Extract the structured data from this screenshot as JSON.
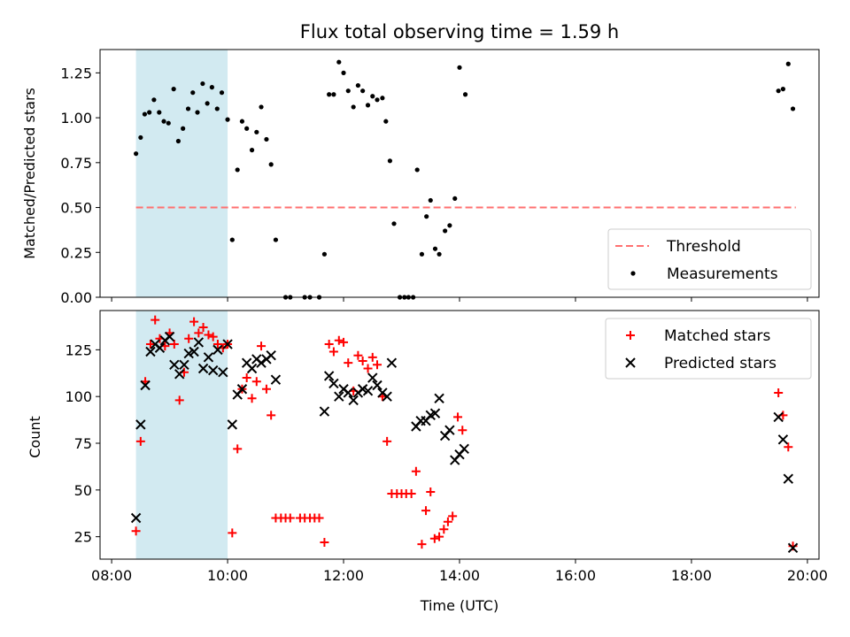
{
  "figure": {
    "title": "Flux total observing time = 1.59 h"
  },
  "colors": {
    "shade": "#add8e6",
    "threshold": "#ff7070",
    "matched": "#ff0000",
    "predicted": "#000000",
    "measurement": "#000000"
  },
  "chart_data": [
    {
      "type": "scatter",
      "title": "Flux total observing time = 1.59 h",
      "xlabel": "",
      "ylabel": "Matched/Predicted stars",
      "xlim": [
        7.8,
        20.2
      ],
      "ylim": [
        0.0,
        1.38
      ],
      "x_unit": "hours UTC",
      "x_ticks": [
        "08:00",
        "10:00",
        "12:00",
        "14:00",
        "16:00",
        "18:00",
        "20:00"
      ],
      "y_ticks": [
        "0.00",
        "0.25",
        "0.50",
        "0.75",
        "1.00",
        "1.25"
      ],
      "shaded_region": [
        8.42,
        10.0
      ],
      "grid": false,
      "legend_position": "lower right",
      "threshold": {
        "name": "Threshold",
        "y": 0.5,
        "x": [
          8.42,
          19.8
        ]
      },
      "series": [
        {
          "name": "Measurements",
          "marker": "dot",
          "points": [
            [
              8.42,
              0.8
            ],
            [
              8.5,
              0.89
            ],
            [
              8.57,
              1.02
            ],
            [
              8.65,
              1.03
            ],
            [
              8.73,
              1.1
            ],
            [
              8.82,
              1.03
            ],
            [
              8.9,
              0.98
            ],
            [
              8.98,
              0.97
            ],
            [
              9.07,
              1.16
            ],
            [
              9.15,
              0.87
            ],
            [
              9.23,
              0.94
            ],
            [
              9.32,
              1.05
            ],
            [
              9.4,
              1.14
            ],
            [
              9.48,
              1.03
            ],
            [
              9.57,
              1.19
            ],
            [
              9.65,
              1.08
            ],
            [
              9.73,
              1.17
            ],
            [
              9.82,
              1.05
            ],
            [
              9.9,
              1.14
            ],
            [
              10.0,
              0.99
            ],
            [
              10.08,
              0.32
            ],
            [
              10.17,
              0.71
            ],
            [
              10.25,
              0.98
            ],
            [
              10.33,
              0.94
            ],
            [
              10.42,
              0.82
            ],
            [
              10.5,
              0.92
            ],
            [
              10.58,
              1.06
            ],
            [
              10.67,
              0.88
            ],
            [
              10.75,
              0.74
            ],
            [
              10.83,
              0.32
            ],
            [
              11.0,
              0.0
            ],
            [
              11.08,
              0.0
            ],
            [
              11.33,
              0.0
            ],
            [
              11.42,
              0.0
            ],
            [
              11.58,
              0.0
            ],
            [
              11.67,
              0.24
            ],
            [
              11.75,
              1.13
            ],
            [
              11.83,
              1.13
            ],
            [
              11.92,
              1.31
            ],
            [
              12.0,
              1.25
            ],
            [
              12.08,
              1.15
            ],
            [
              12.17,
              1.06
            ],
            [
              12.25,
              1.18
            ],
            [
              12.33,
              1.15
            ],
            [
              12.42,
              1.07
            ],
            [
              12.5,
              1.12
            ],
            [
              12.58,
              1.1
            ],
            [
              12.67,
              1.11
            ],
            [
              12.73,
              0.98
            ],
            [
              12.8,
              0.76
            ],
            [
              12.87,
              0.41
            ],
            [
              12.97,
              0.0
            ],
            [
              13.05,
              0.0
            ],
            [
              13.12,
              0.0
            ],
            [
              13.2,
              0.0
            ],
            [
              13.27,
              0.71
            ],
            [
              13.35,
              0.24
            ],
            [
              13.43,
              0.45
            ],
            [
              13.5,
              0.54
            ],
            [
              13.58,
              0.27
            ],
            [
              13.65,
              0.24
            ],
            [
              13.75,
              0.37
            ],
            [
              13.83,
              0.4
            ],
            [
              13.92,
              0.55
            ],
            [
              14.0,
              1.28
            ],
            [
              14.1,
              1.13
            ],
            [
              19.5,
              1.15
            ],
            [
              19.58,
              1.16
            ],
            [
              19.67,
              1.3
            ],
            [
              19.75,
              1.05
            ]
          ]
        }
      ]
    },
    {
      "type": "scatter",
      "title": "",
      "xlabel": "Time (UTC)",
      "ylabel": "Count",
      "xlim": [
        7.8,
        20.2
      ],
      "ylim": [
        13,
        146
      ],
      "x_unit": "hours UTC",
      "x_ticks": [
        "08:00",
        "10:00",
        "12:00",
        "14:00",
        "16:00",
        "18:00",
        "20:00"
      ],
      "y_ticks": [
        "25",
        "50",
        "75",
        "100",
        "125"
      ],
      "shaded_region": [
        8.42,
        10.0
      ],
      "grid": false,
      "legend_position": "upper right",
      "series": [
        {
          "name": "Matched stars",
          "marker": "plus",
          "points": [
            [
              8.42,
              28
            ],
            [
              8.5,
              76
            ],
            [
              8.58,
              108
            ],
            [
              8.67,
              128
            ],
            [
              8.75,
              141
            ],
            [
              8.83,
              131
            ],
            [
              8.92,
              127
            ],
            [
              9.0,
              134
            ],
            [
              9.08,
              128
            ],
            [
              9.17,
              98
            ],
            [
              9.25,
              113
            ],
            [
              9.33,
              131
            ],
            [
              9.42,
              140
            ],
            [
              9.5,
              134
            ],
            [
              9.58,
              137
            ],
            [
              9.67,
              133
            ],
            [
              9.75,
              132
            ],
            [
              9.83,
              128
            ],
            [
              9.92,
              126
            ],
            [
              10.0,
              128
            ],
            [
              10.08,
              27
            ],
            [
              10.17,
              72
            ],
            [
              10.25,
              104
            ],
            [
              10.33,
              110
            ],
            [
              10.42,
              99
            ],
            [
              10.5,
              108
            ],
            [
              10.58,
              127
            ],
            [
              10.67,
              104
            ],
            [
              10.75,
              90
            ],
            [
              10.83,
              35
            ],
            [
              10.92,
              35
            ],
            [
              11.0,
              35
            ],
            [
              11.08,
              35
            ],
            [
              11.25,
              35
            ],
            [
              11.33,
              35
            ],
            [
              11.42,
              35
            ],
            [
              11.5,
              35
            ],
            [
              11.58,
              35
            ],
            [
              11.67,
              22
            ],
            [
              11.75,
              128
            ],
            [
              11.83,
              124
            ],
            [
              11.92,
              130
            ],
            [
              12.0,
              129
            ],
            [
              12.08,
              118
            ],
            [
              12.17,
              103
            ],
            [
              12.25,
              122
            ],
            [
              12.33,
              119
            ],
            [
              12.42,
              115
            ],
            [
              12.5,
              121
            ],
            [
              12.58,
              117
            ],
            [
              12.67,
              100
            ],
            [
              12.75,
              76
            ],
            [
              12.83,
              48
            ],
            [
              12.92,
              48
            ],
            [
              13.0,
              48
            ],
            [
              13.08,
              48
            ],
            [
              13.17,
              48
            ],
            [
              13.25,
              60
            ],
            [
              13.35,
              21
            ],
            [
              13.42,
              39
            ],
            [
              13.5,
              49
            ],
            [
              13.57,
              24
            ],
            [
              13.65,
              25
            ],
            [
              13.73,
              29
            ],
            [
              13.8,
              33
            ],
            [
              13.88,
              36
            ],
            [
              13.97,
              89
            ],
            [
              14.05,
              82
            ],
            [
              19.5,
              102
            ],
            [
              19.58,
              90
            ],
            [
              19.67,
              73
            ],
            [
              19.75,
              20
            ]
          ]
        },
        {
          "name": "Predicted stars",
          "marker": "x",
          "points": [
            [
              8.42,
              35
            ],
            [
              8.5,
              85
            ],
            [
              8.58,
              106
            ],
            [
              8.67,
              124
            ],
            [
              8.75,
              128
            ],
            [
              8.83,
              126
            ],
            [
              8.92,
              130
            ],
            [
              9.0,
              132
            ],
            [
              9.08,
              117
            ],
            [
              9.17,
              112
            ],
            [
              9.25,
              117
            ],
            [
              9.33,
              123
            ],
            [
              9.42,
              124
            ],
            [
              9.5,
              129
            ],
            [
              9.58,
              115
            ],
            [
              9.67,
              121
            ],
            [
              9.75,
              114
            ],
            [
              9.83,
              125
            ],
            [
              9.92,
              113
            ],
            [
              10.0,
              128
            ],
            [
              10.08,
              85
            ],
            [
              10.17,
              101
            ],
            [
              10.25,
              104
            ],
            [
              10.33,
              118
            ],
            [
              10.42,
              115
            ],
            [
              10.5,
              120
            ],
            [
              10.58,
              118
            ],
            [
              10.67,
              120
            ],
            [
              10.75,
              122
            ],
            [
              10.83,
              109
            ],
            [
              11.67,
              92
            ],
            [
              11.75,
              111
            ],
            [
              11.83,
              107
            ],
            [
              11.92,
              100
            ],
            [
              12.0,
              104
            ],
            [
              12.08,
              102
            ],
            [
              12.17,
              98
            ],
            [
              12.25,
              102
            ],
            [
              12.33,
              104
            ],
            [
              12.42,
              103
            ],
            [
              12.5,
              110
            ],
            [
              12.58,
              106
            ],
            [
              12.67,
              102
            ],
            [
              12.75,
              100
            ],
            [
              12.83,
              118
            ],
            [
              13.25,
              84
            ],
            [
              13.33,
              87
            ],
            [
              13.42,
              87
            ],
            [
              13.5,
              90
            ],
            [
              13.58,
              91
            ],
            [
              13.65,
              99
            ],
            [
              13.75,
              79
            ],
            [
              13.83,
              82
            ],
            [
              13.92,
              66
            ],
            [
              14.0,
              69
            ],
            [
              14.08,
              72
            ],
            [
              19.5,
              89
            ],
            [
              19.58,
              77
            ],
            [
              19.67,
              56
            ],
            [
              19.75,
              19
            ]
          ]
        }
      ]
    }
  ]
}
